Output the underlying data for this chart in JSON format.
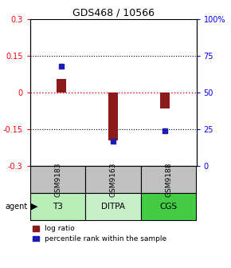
{
  "title": "GDS468 / 10566",
  "samples": [
    "GSM9183",
    "GSM9163",
    "GSM9188"
  ],
  "agents": [
    "T3",
    "DITPA",
    "CGS"
  ],
  "log_ratios": [
    0.055,
    -0.195,
    -0.065
  ],
  "percentile_ranks": [
    68,
    17,
    24
  ],
  "ylim_left": [
    -0.3,
    0.3
  ],
  "ylim_right": [
    0,
    100
  ],
  "yticks_left": [
    -0.3,
    -0.15,
    0,
    0.15,
    0.3
  ],
  "ytick_labels_left": [
    "-0.3",
    "-0.15",
    "0",
    "0.15",
    "0.3"
  ],
  "yticks_right": [
    0,
    25,
    50,
    75,
    100
  ],
  "ytick_labels_right": [
    "0",
    "25",
    "50",
    "75",
    "100%"
  ],
  "bar_color_log": "#8B1A1A",
  "bar_color_pct": "#1C1CB4",
  "sample_bg": "#C0C0C0",
  "agent_colors": [
    "#B8EEB8",
    "#C8F0C8",
    "#44CC44"
  ],
  "hline_color": "#FF0000",
  "dotted_color": "#000000",
  "bar_width": 0.18,
  "marker_size": 4,
  "title_fontsize": 9,
  "tick_fontsize": 7,
  "sample_fontsize": 6.5,
  "agent_fontsize": 7.5,
  "legend_fontsize": 6.5
}
